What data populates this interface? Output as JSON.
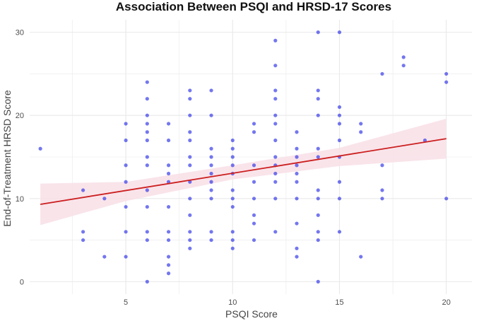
{
  "chart_data": {
    "type": "scatter",
    "title": "Association Between PSQI and HRSD-17 Scores",
    "xlabel": "PSQI Score",
    "ylabel": "End-of-Treatment HRSD Score",
    "xlim": [
      0.5,
      21.2
    ],
    "ylim": [
      -1.5,
      31.5
    ],
    "x_ticks": [
      5,
      10,
      15,
      20
    ],
    "y_ticks": [
      0,
      10,
      20,
      30
    ],
    "grid": true,
    "points": [
      [
        1,
        16
      ],
      [
        3,
        11
      ],
      [
        3,
        6
      ],
      [
        3,
        5
      ],
      [
        4,
        10
      ],
      [
        4,
        3
      ],
      [
        5,
        19
      ],
      [
        5,
        17
      ],
      [
        5,
        14
      ],
      [
        5,
        12
      ],
      [
        5,
        9
      ],
      [
        5,
        6
      ],
      [
        5,
        3
      ],
      [
        6,
        24
      ],
      [
        6,
        22
      ],
      [
        6,
        20
      ],
      [
        6,
        19
      ],
      [
        6,
        18
      ],
      [
        6,
        17
      ],
      [
        6,
        15
      ],
      [
        6,
        14
      ],
      [
        6,
        11
      ],
      [
        6,
        9
      ],
      [
        6,
        6
      ],
      [
        6,
        5
      ],
      [
        6,
        0
      ],
      [
        7,
        19
      ],
      [
        7,
        17
      ],
      [
        7,
        14
      ],
      [
        7,
        13
      ],
      [
        7,
        12
      ],
      [
        7,
        9
      ],
      [
        7,
        6
      ],
      [
        7,
        5
      ],
      [
        7,
        3
      ],
      [
        7,
        2
      ],
      [
        7,
        1
      ],
      [
        8,
        23
      ],
      [
        8,
        22
      ],
      [
        8,
        20
      ],
      [
        8,
        18
      ],
      [
        8,
        17
      ],
      [
        8,
        15
      ],
      [
        8,
        14
      ],
      [
        8,
        12
      ],
      [
        8,
        10
      ],
      [
        8,
        8
      ],
      [
        8,
        6
      ],
      [
        8,
        5
      ],
      [
        8,
        4
      ],
      [
        9,
        23
      ],
      [
        9,
        20
      ],
      [
        9,
        16
      ],
      [
        9,
        15
      ],
      [
        9,
        14
      ],
      [
        9,
        13
      ],
      [
        9,
        12
      ],
      [
        9,
        11
      ],
      [
        9,
        10
      ],
      [
        9,
        6
      ],
      [
        9,
        5
      ],
      [
        10,
        17
      ],
      [
        10,
        16
      ],
      [
        10,
        15
      ],
      [
        10,
        14
      ],
      [
        10,
        13
      ],
      [
        10,
        11
      ],
      [
        10,
        10
      ],
      [
        10,
        9
      ],
      [
        10,
        6
      ],
      [
        10,
        5
      ],
      [
        10,
        4
      ],
      [
        11,
        19
      ],
      [
        11,
        18
      ],
      [
        11,
        14
      ],
      [
        11,
        12
      ],
      [
        11,
        10
      ],
      [
        11,
        8
      ],
      [
        11,
        7
      ],
      [
        11,
        5
      ],
      [
        12,
        29
      ],
      [
        12,
        26
      ],
      [
        12,
        23
      ],
      [
        12,
        22
      ],
      [
        12,
        20
      ],
      [
        12,
        19
      ],
      [
        12,
        17
      ],
      [
        12,
        15
      ],
      [
        12,
        14
      ],
      [
        12,
        13
      ],
      [
        12,
        12
      ],
      [
        12,
        10
      ],
      [
        12,
        6
      ],
      [
        13,
        18
      ],
      [
        13,
        16
      ],
      [
        13,
        15
      ],
      [
        13,
        14
      ],
      [
        13,
        13
      ],
      [
        13,
        12
      ],
      [
        13,
        10
      ],
      [
        13,
        7
      ],
      [
        13,
        4
      ],
      [
        13,
        3
      ],
      [
        14,
        30
      ],
      [
        14,
        23
      ],
      [
        14,
        22
      ],
      [
        14,
        20
      ],
      [
        14,
        16
      ],
      [
        14,
        15
      ],
      [
        14,
        11
      ],
      [
        14,
        10
      ],
      [
        14,
        8
      ],
      [
        14,
        6
      ],
      [
        14,
        5
      ],
      [
        14,
        0
      ],
      [
        15,
        30
      ],
      [
        15,
        21
      ],
      [
        15,
        20
      ],
      [
        15,
        19
      ],
      [
        15,
        17
      ],
      [
        15,
        15
      ],
      [
        15,
        12
      ],
      [
        15,
        10
      ],
      [
        15,
        6
      ],
      [
        16,
        19
      ],
      [
        16,
        18
      ],
      [
        16,
        3
      ],
      [
        17,
        25
      ],
      [
        17,
        14
      ],
      [
        17,
        11
      ],
      [
        17,
        10
      ],
      [
        18,
        27
      ],
      [
        18,
        26
      ],
      [
        19,
        17
      ],
      [
        20,
        25
      ],
      [
        20,
        24
      ],
      [
        20,
        10
      ]
    ],
    "trend_line": {
      "x": [
        1,
        20
      ],
      "y": [
        9.3,
        17.2
      ]
    },
    "confidence_band": {
      "x": [
        1,
        5,
        10,
        15,
        20
      ],
      "lower": [
        6.8,
        9.7,
        12.3,
        13.9,
        14.8
      ],
      "upper": [
        11.8,
        12.0,
        14.0,
        16.1,
        19.6
      ]
    },
    "colors": {
      "points": "#2a2ee6",
      "trend": "#cc1f1f",
      "band": "#f8dfe6",
      "grid": "#e9e9e9",
      "tick_text": "#4d4d4d"
    }
  }
}
